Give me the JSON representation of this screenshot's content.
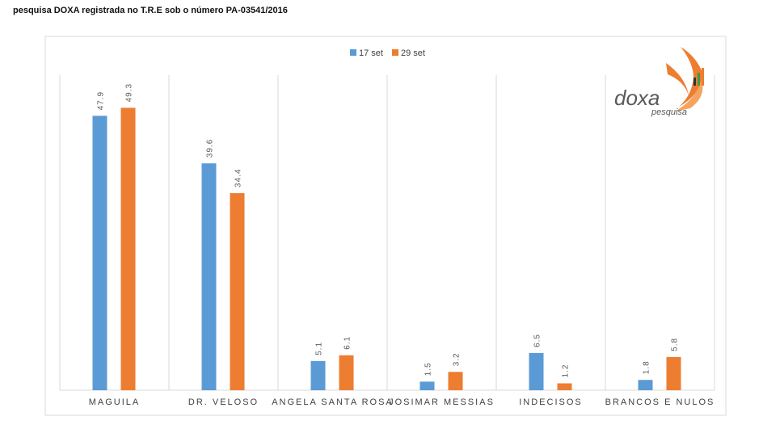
{
  "header": {
    "text": "pesquisa DOXA registrada no T.R.E sob o número PA-03541/2016"
  },
  "logo": {
    "word": "doxa",
    "sub": "pesquisa"
  },
  "colors": {
    "series1": "#5b9bd5",
    "series2": "#ed7d31",
    "grid": "#d9d9d9",
    "text": "#404040"
  },
  "chart_data": {
    "type": "bar",
    "title": "",
    "xlabel": "",
    "ylabel": "",
    "ylim": [
      0,
      55
    ],
    "grid": "vertical category separators",
    "legend": "top-center",
    "categories": [
      "MAGUILA",
      "DR. VELOSO",
      "ANGELA SANTA ROSA",
      "JOSIMAR MESSIAS",
      "INDECISOS",
      "BRANCOS E NULOS"
    ],
    "series": [
      {
        "name": "17 set",
        "color": "#5b9bd5",
        "values": [
          47.9,
          39.6,
          5.1,
          1.5,
          6.5,
          1.8
        ]
      },
      {
        "name": "29 set",
        "color": "#ed7d31",
        "values": [
          49.3,
          34.4,
          6.1,
          3.2,
          1.2,
          5.8
        ]
      }
    ]
  }
}
